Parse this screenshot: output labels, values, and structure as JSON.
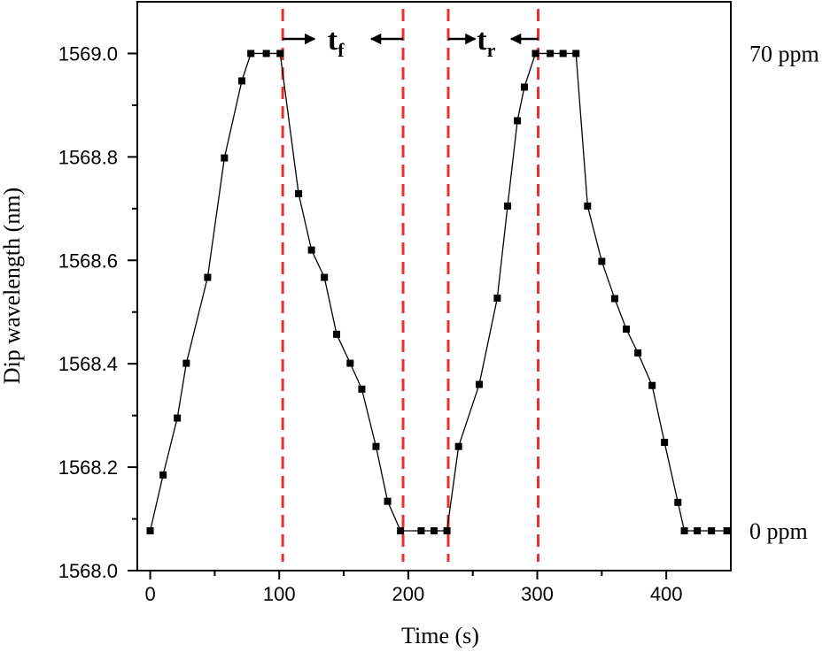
{
  "chart_data": {
    "type": "line",
    "xlabel": "Time (s)",
    "ylabel": "Dip wavelength (nm)",
    "x": [
      0,
      10,
      21,
      28,
      44.5,
      57.5,
      71,
      78,
      90,
      100.7,
      115,
      125,
      135,
      144.5,
      155,
      164,
      175,
      184,
      194,
      210,
      220,
      230,
      239,
      255,
      269,
      277,
      284.6,
      290,
      298.6,
      310,
      320,
      330,
      339,
      350,
      360,
      369,
      378,
      389,
      398.6,
      409,
      414,
      424,
      435,
      447
    ],
    "series": [
      {
        "color": "#000000",
        "values": [
          1568.077,
          1568.185,
          1568.295,
          1568.401,
          1568.567,
          1568.798,
          1568.947,
          1569.0,
          1569.0,
          1569.0,
          1568.729,
          1568.62,
          1568.567,
          1568.457,
          1568.401,
          1568.351,
          1568.24,
          1568.134,
          1568.077,
          1568.077,
          1568.077,
          1568.077,
          1568.24,
          1568.36,
          1568.527,
          1568.705,
          1568.87,
          1568.935,
          1569.0,
          1569.0,
          1569.0,
          1569.0,
          1568.705,
          1568.598,
          1568.526,
          1568.467,
          1568.421,
          1568.358,
          1568.248,
          1568.132,
          1568.077,
          1568.077,
          1568.077,
          1568.077
        ]
      }
    ],
    "xlim": [
      -10,
      450
    ],
    "ylim": [
      1568.0,
      1569.1
    ],
    "xticks": [
      0,
      100,
      200,
      300,
      400
    ],
    "xminor": [
      50,
      150,
      250,
      350
    ],
    "yticks": [
      {
        "value": 1568.0,
        "label": "1568.0"
      },
      {
        "value": 1568.2,
        "label": "1568.2"
      },
      {
        "value": 1568.4,
        "label": "1568.4"
      },
      {
        "value": 1568.6,
        "label": "1568.6"
      },
      {
        "value": 1568.8,
        "label": "1568.8"
      },
      {
        "value": 1569.0,
        "label": "1569.0"
      }
    ],
    "yminor": [
      1568.1,
      1568.3,
      1568.5,
      1568.7,
      1568.9
    ],
    "level_labels": [
      {
        "value": 1569.0,
        "label": "70 ppm"
      },
      {
        "value": 1568.077,
        "label": "0 ppm"
      }
    ],
    "vlines": [
      102.7,
      196,
      231,
      300.7
    ],
    "vline_color": "#e8312f",
    "annotations": [
      {
        "text": "t",
        "sub": "f"
      },
      {
        "text": "t",
        "sub": "r"
      }
    ]
  }
}
